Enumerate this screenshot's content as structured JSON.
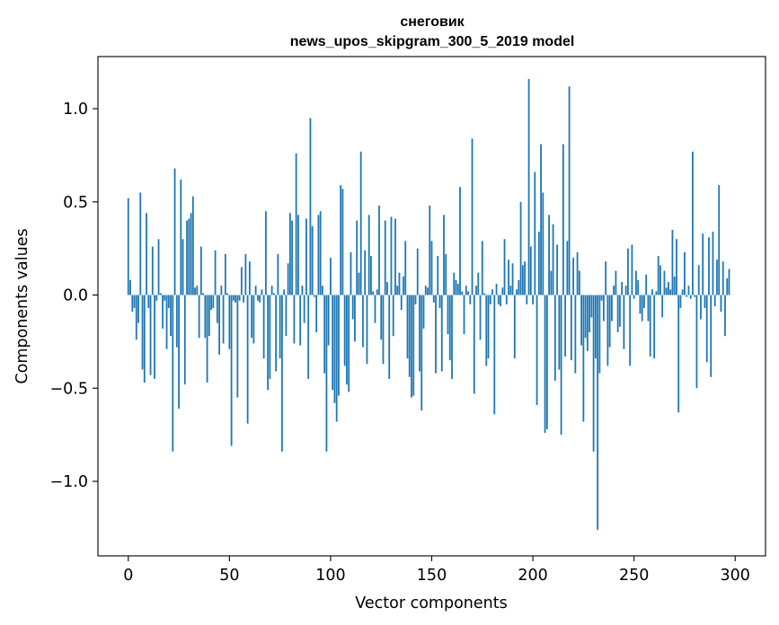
{
  "chart_data": {
    "type": "bar",
    "title": [
      "снеговик",
      "news_upos_skipgram_300_5_2019 model"
    ],
    "xlabel": "Vector components",
    "ylabel": "Components values",
    "xlim": [
      -15,
      315
    ],
    "ylim": [
      -1.4,
      1.28
    ],
    "x_ticks": [
      0,
      50,
      100,
      150,
      200,
      250,
      300
    ],
    "x_tick_labels": [
      "0",
      "50",
      "100",
      "150",
      "200",
      "250",
      "300"
    ],
    "y_ticks": [
      -1.0,
      -0.5,
      0.0,
      0.5,
      1.0
    ],
    "y_tick_labels": [
      "−1.0",
      "−0.5",
      "0.0",
      "0.5",
      "1.0"
    ],
    "bar_color": "#1f77b4",
    "bar_width": 0.8,
    "values": [
      0.52,
      0.08,
      -0.09,
      -0.07,
      -0.24,
      -0.15,
      0.55,
      -0.4,
      -0.47,
      0.44,
      -0.07,
      -0.43,
      0.26,
      -0.45,
      -0.03,
      0.3,
      0.01,
      -0.18,
      -0.03,
      -0.29,
      -0.07,
      -0.22,
      -0.84,
      0.68,
      -0.28,
      -0.61,
      0.62,
      0.3,
      -0.48,
      0.4,
      0.41,
      0.44,
      0.53,
      0.04,
      0.05,
      -0.23,
      0.26,
      0.01,
      -0.23,
      -0.47,
      -0.22,
      -0.08,
      -0.07,
      0.24,
      -0.15,
      -0.32,
      0.05,
      -0.26,
      0.22,
      0.01,
      -0.29,
      -0.81,
      -0.03,
      -0.04,
      -0.55,
      -0.03,
      0.15,
      -0.04,
      0.22,
      -0.69,
      0.18,
      -0.23,
      -0.26,
      0.05,
      -0.03,
      -0.04,
      0.03,
      -0.34,
      0.45,
      -0.51,
      -0.45,
      0.05,
      0.01,
      -0.41,
      0.22,
      -0.34,
      -0.84,
      0.03,
      -0.22,
      0.17,
      0.44,
      0.4,
      -0.26,
      0.76,
      0.43,
      -0.27,
      0.05,
      -0.15,
      0.41,
      -0.45,
      0.95,
      0.37,
      -0.01,
      -0.2,
      0.43,
      0.45,
      0.05,
      -0.42,
      -0.84,
      -0.27,
      0.2,
      -0.51,
      -0.58,
      -0.68,
      -0.54,
      0.59,
      0.57,
      -0.38,
      -0.48,
      -0.52,
      0.23,
      -0.13,
      -0.25,
      0.4,
      0.12,
      0.77,
      -0.28,
      0.24,
      -0.37,
      0.43,
      0.21,
      0.02,
      -0.15,
      0.03,
      0.48,
      -0.24,
      -0.37,
      0.4,
      0.07,
      -0.45,
      0.42,
      -0.22,
      0.41,
      0.05,
      0.12,
      -0.08,
      0.1,
      0.29,
      -0.34,
      -0.44,
      -0.55,
      -0.54,
      -0.05,
      0.25,
      -0.41,
      -0.62,
      -0.18,
      0.05,
      0.04,
      0.48,
      0.29,
      -0.04,
      -0.42,
      0.21,
      -0.07,
      -0.41,
      0.43,
      0.22,
      -0.21,
      -0.35,
      -0.45,
      0.12,
      0.08,
      0.06,
      0.58,
      0.02,
      -0.21,
      0.05,
      0.02,
      -0.05,
      0.84,
      -0.53,
      0.05,
      0.12,
      -0.24,
      0.29,
      0.01,
      -0.38,
      -0.34,
      -0.05,
      0.03,
      -0.64,
      0.06,
      -0.05,
      -0.06,
      0.04,
      0.3,
      -0.05,
      0.19,
      0.05,
      0.17,
      -0.34,
      0.03,
      0.08,
      0.5,
      0.16,
      0.18,
      -0.05,
      1.16,
      0.26,
      -0.05,
      0.66,
      -0.59,
      0.34,
      0.81,
      0.55,
      -0.74,
      -0.72,
      0.43,
      0.13,
      0.38,
      -0.46,
      0.27,
      -0.4,
      -0.75,
      0.81,
      -0.33,
      0.29,
      1.12,
      -0.35,
      0.2,
      -0.42,
      0.23,
      0.13,
      -0.27,
      -0.68,
      -0.23,
      -0.3,
      -0.2,
      -0.12,
      -0.84,
      -0.34,
      -1.26,
      -0.42,
      -0.03,
      -0.14,
      0.18,
      -0.38,
      -0.28,
      -0.14,
      0.05,
      0.13,
      -0.2,
      -0.17,
      0.07,
      -0.29,
      0.05,
      0.25,
      -0.38,
      0.27,
      -0.02,
      0.13,
      0.08,
      -0.1,
      -0.14,
      -0.07,
      0.11,
      -0.14,
      -0.33,
      0.03,
      -0.34,
      0.02,
      0.21,
      0.16,
      -0.12,
      0.13,
      0.04,
      0.07,
      0.03,
      0.35,
      0.1,
      0.3,
      -0.63,
      -0.07,
      0.03,
      0.23,
      -0.01,
      0.05,
      -0.02,
      0.77,
      -0.01,
      -0.5,
      0.16,
      -0.13,
      0.33,
      -0.07,
      -0.36,
      0.31,
      -0.44,
      0.34,
      -0.06,
      0.19,
      0.59,
      -0.09,
      0.18,
      -0.22,
      0.09,
      0.14
    ]
  }
}
